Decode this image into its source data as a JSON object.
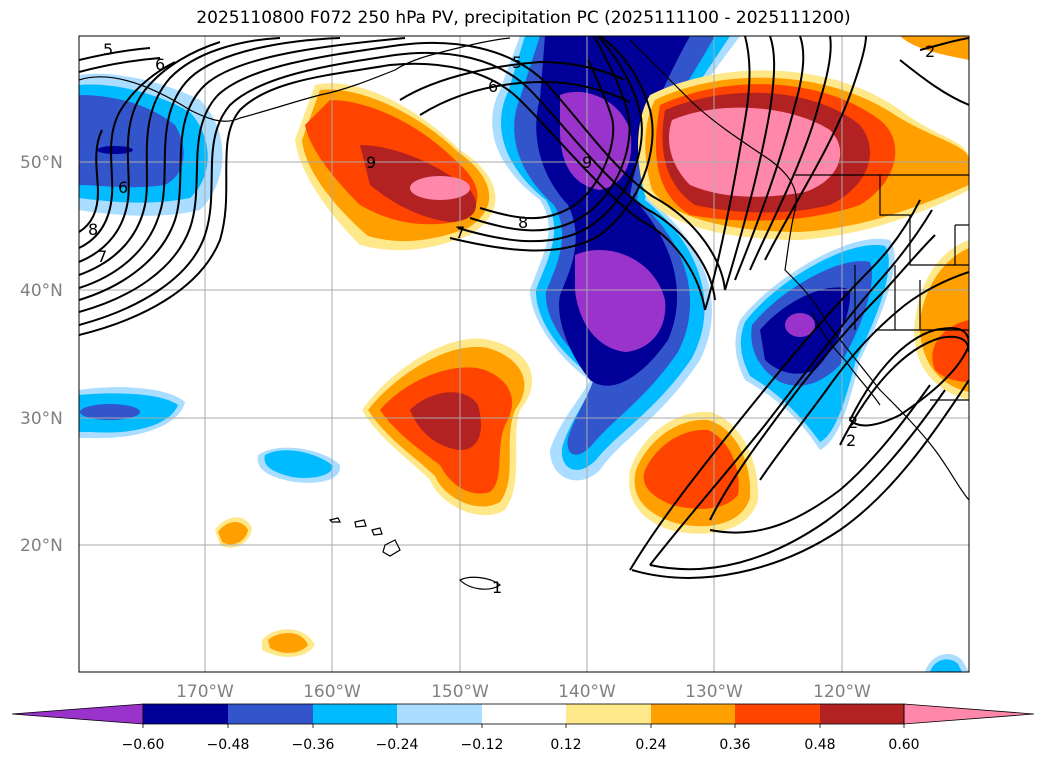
{
  "title": "2025110800 F072 250 hPa PV, precipitation PC (2025111100 - 2025111200)",
  "latitude_labels": [
    "50°N",
    "40°N",
    "30°N",
    "20°N"
  ],
  "longitude_labels": [
    "170°W",
    "160°W",
    "150°W",
    "140°W",
    "130°W",
    "120°W"
  ],
  "colorbar": {
    "tick_labels": [
      "−0.60",
      "−0.48",
      "−0.36",
      "−0.24",
      "−0.12",
      "0.12",
      "0.24",
      "0.36",
      "0.48",
      "0.60"
    ],
    "colors": [
      "#9933cc",
      "#000099",
      "#3355cc",
      "#00bbff",
      "#aaddff",
      "#ffffff",
      "#ffe88a",
      "#ff9f00",
      "#ff4400",
      "#b22222",
      "#ff88aa"
    ]
  },
  "pv_contour_labels": [
    "5",
    "6",
    "6",
    "7",
    "8",
    "5",
    "6",
    "8",
    "9",
    "9",
    "7",
    "2",
    "2",
    "2",
    "1"
  ],
  "colors": {
    "frame": "#000000",
    "grid": "#aaaaaa",
    "coast": "#000000",
    "contour": "#000000"
  }
}
